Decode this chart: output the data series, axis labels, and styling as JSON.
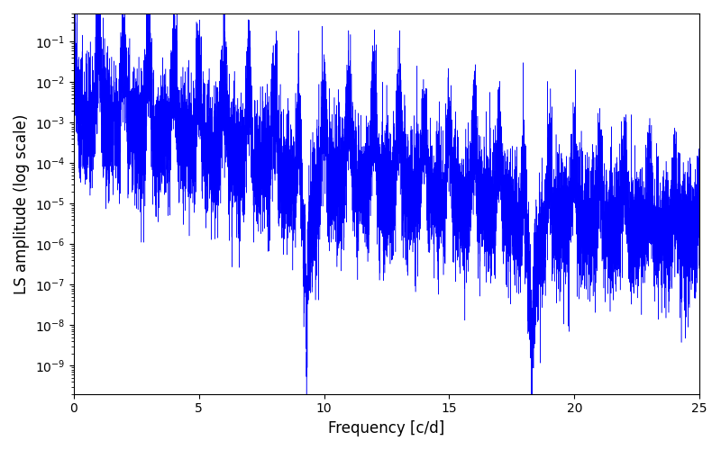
{
  "xlabel": "Frequency [c/d]",
  "ylabel": "LS amplitude (log scale)",
  "xmin": 0,
  "xmax": 25,
  "ymin": 2e-10,
  "ymax": 0.5,
  "line_color": "#0000ff",
  "background_color": "#ffffff",
  "seed": 77,
  "figsize": [
    8.0,
    5.0
  ],
  "dpi": 100,
  "n_points": 12000
}
